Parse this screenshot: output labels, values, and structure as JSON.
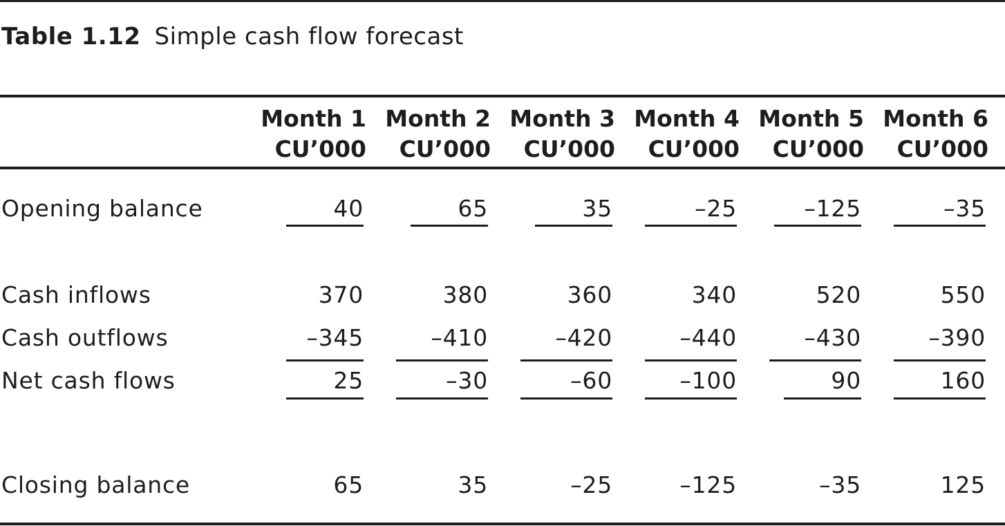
{
  "caption": {
    "number": "Table 1.12",
    "title": "Simple cash flow forecast"
  },
  "columns": [
    {
      "month": "Month 1",
      "unit": "CU’000"
    },
    {
      "month": "Month 2",
      "unit": "CU’000"
    },
    {
      "month": "Month 3",
      "unit": "CU’000"
    },
    {
      "month": "Month 4",
      "unit": "CU’000"
    },
    {
      "month": "Month 5",
      "unit": "CU’000"
    },
    {
      "month": "Month 6",
      "unit": "CU’000"
    }
  ],
  "rows": [
    {
      "label": "Opening balance",
      "values": [
        "40",
        "65",
        "35",
        "–25",
        "–125",
        "–35"
      ]
    },
    {
      "label": "Cash inflows",
      "values": [
        "370",
        "380",
        "360",
        "340",
        "520",
        "550"
      ]
    },
    {
      "label": "Cash outflows",
      "values": [
        "–345",
        "–410",
        "–420",
        "–440",
        "–430",
        "–390"
      ]
    },
    {
      "label": "Net cash flows",
      "values": [
        "25",
        "–30",
        "–60",
        "–100",
        "90",
        "160"
      ]
    },
    {
      "label": "Closing balance",
      "values": [
        "65",
        "35",
        "–25",
        "–125",
        "–35",
        "125"
      ]
    }
  ]
}
